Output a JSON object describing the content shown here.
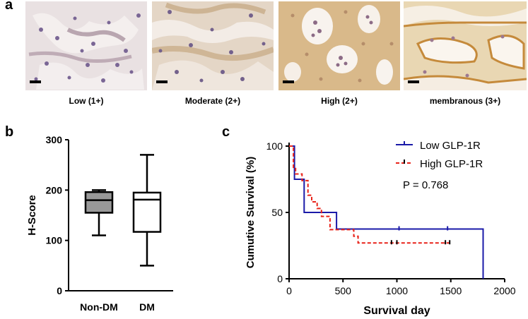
{
  "panel_a": {
    "letter": "a",
    "images": [
      {
        "caption": "Low (1+)"
      },
      {
        "caption": "Moderate (2+)"
      },
      {
        "caption": "High (2+)"
      },
      {
        "caption": "membranous (3+)"
      }
    ]
  },
  "chart_data": [
    {
      "type": "box",
      "panel": "b",
      "ylabel": "H-Score",
      "ylim": [
        0,
        300
      ],
      "yticks": [
        0,
        100,
        200,
        300
      ],
      "categories": [
        "Non-DM",
        "DM"
      ],
      "boxes": [
        {
          "category": "Non-DM",
          "min": 110,
          "q1": 155,
          "median": 180,
          "q3": 196,
          "max": 200,
          "fill": "#999999"
        },
        {
          "category": "DM",
          "min": 50,
          "q1": 117,
          "median": 181,
          "q3": 195,
          "max": 270,
          "fill": "#ffffff"
        }
      ]
    },
    {
      "type": "line",
      "panel": "c",
      "xlabel": "Survival day",
      "ylabel": "Cumutive Survival (%)",
      "xlim": [
        0,
        2000
      ],
      "ylim": [
        0,
        100
      ],
      "xticks": [
        0,
        500,
        1000,
        1500,
        2000
      ],
      "yticks": [
        0,
        50,
        100
      ],
      "annotation": "P = 0.768",
      "series": [
        {
          "name": "Low GLP-1R",
          "color": "#1a1aa8",
          "dash": "solid",
          "steps": [
            [
              0,
              100
            ],
            [
              50,
              100
            ],
            [
              50,
              75
            ],
            [
              140,
              75
            ],
            [
              140,
              50
            ],
            [
              440,
              50
            ],
            [
              440,
              37.5
            ],
            [
              1800,
              37.5
            ],
            [
              1800,
              0
            ]
          ],
          "censor": [
            [
              1020,
              37.5
            ],
            [
              1470,
              37.5
            ]
          ]
        },
        {
          "name": "High GLP-1R",
          "color": "#e8231a",
          "dash": "dashed",
          "steps": [
            [
              0,
              100
            ],
            [
              40,
              100
            ],
            [
              40,
              84
            ],
            [
              60,
              84
            ],
            [
              60,
              79
            ],
            [
              120,
              79
            ],
            [
              120,
              74
            ],
            [
              175,
              74
            ],
            [
              175,
              63
            ],
            [
              210,
              63
            ],
            [
              210,
              58
            ],
            [
              260,
              58
            ],
            [
              260,
              53
            ],
            [
              300,
              53
            ],
            [
              300,
              47
            ],
            [
              380,
              47
            ],
            [
              380,
              37
            ],
            [
              600,
              37
            ],
            [
              600,
              32
            ],
            [
              640,
              32
            ],
            [
              640,
              27
            ],
            [
              1500,
              27
            ]
          ],
          "censor": [
            [
              950,
              27
            ],
            [
              1000,
              27
            ],
            [
              1450,
              27
            ],
            [
              1490,
              27
            ]
          ]
        }
      ]
    }
  ]
}
